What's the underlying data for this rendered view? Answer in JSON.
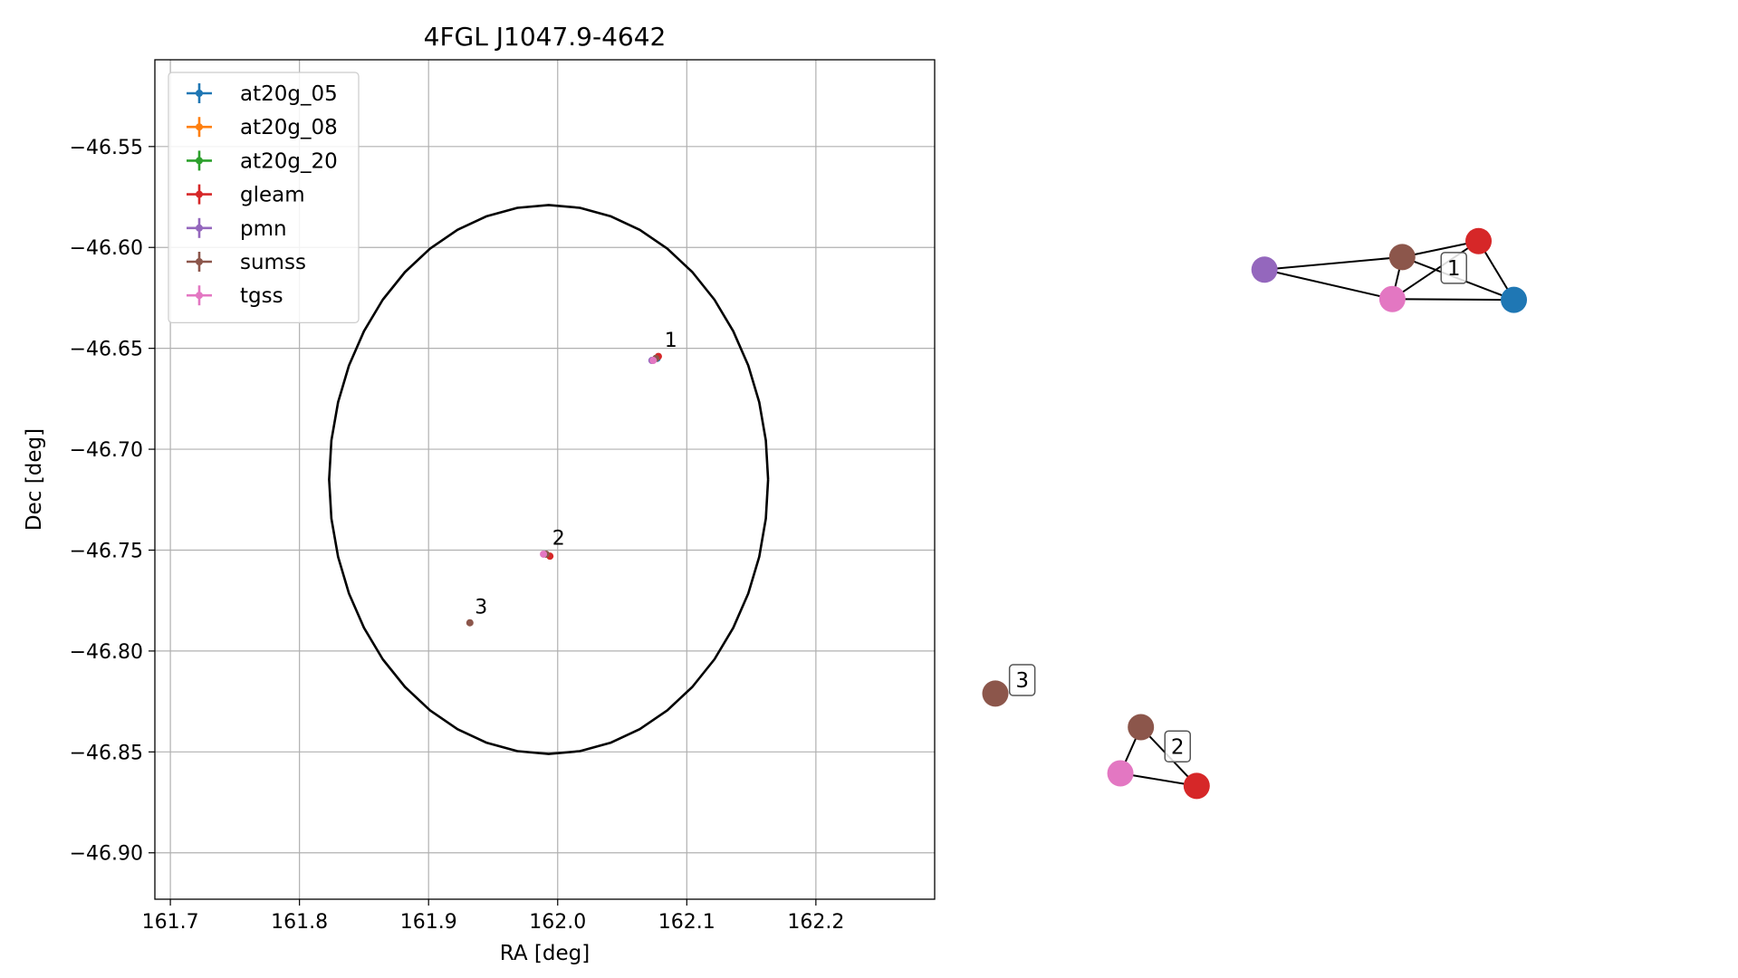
{
  "chart_data": [
    {
      "type": "scatter",
      "title": "4FGL J1047.9-4642",
      "xlabel": "RA [deg]",
      "ylabel": "Dec [deg]",
      "xlim": [
        161.688,
        162.292
      ],
      "ylim": [
        -46.923,
        -46.507
      ],
      "xticks": [
        161.7,
        161.8,
        161.9,
        162.0,
        162.1,
        162.2
      ],
      "xtick_labels": [
        "161.7",
        "161.8",
        "161.9",
        "162.0",
        "162.1",
        "162.2"
      ],
      "yticks": [
        -46.55,
        -46.6,
        -46.65,
        -46.7,
        -46.75,
        -46.8,
        -46.85,
        -46.9
      ],
      "ytick_labels": [
        "−46.55",
        "−46.60",
        "−46.65",
        "−46.70",
        "−46.75",
        "−46.80",
        "−46.85",
        "−46.90"
      ],
      "grid": true,
      "legend_position": "top-left",
      "series": [
        {
          "name": "at20g_05",
          "color": "#1f77b4",
          "points": [
            [
              162.077,
              -46.655
            ]
          ]
        },
        {
          "name": "at20g_08",
          "color": "#ff7f0e",
          "points": []
        },
        {
          "name": "at20g_20",
          "color": "#2ca02c",
          "points": []
        },
        {
          "name": "gleam",
          "color": "#d62728",
          "points": [
            [
              162.078,
              -46.654
            ],
            [
              161.994,
              -46.753
            ]
          ]
        },
        {
          "name": "pmn",
          "color": "#9467bd",
          "points": [
            [
              162.073,
              -46.656
            ]
          ]
        },
        {
          "name": "sumss",
          "color": "#8c564b",
          "points": [
            [
              162.076,
              -46.655
            ],
            [
              161.991,
              -46.752
            ],
            [
              161.932,
              -46.786
            ]
          ]
        },
        {
          "name": "tgss",
          "color": "#e377c2",
          "points": [
            [
              162.074,
              -46.656
            ],
            [
              161.989,
              -46.752
            ]
          ]
        }
      ],
      "ellipse": {
        "center": [
          161.993,
          -46.715
        ],
        "ra_semi_axis": 0.17,
        "dec_semi_axis": 0.136,
        "color": "#000000"
      },
      "annotations": [
        {
          "text": "1",
          "x": 162.08,
          "y": -46.652
        },
        {
          "text": "2",
          "x": 161.993,
          "y": -46.75
        },
        {
          "text": "3",
          "x": 161.933,
          "y": -46.784
        }
      ]
    },
    {
      "type": "network",
      "nodes": [
        {
          "id": "g1_at20g_05",
          "catalog": "at20g_05",
          "color": "#1f77b4",
          "x": 0.784,
          "y": 0.714
        },
        {
          "id": "g1_gleam",
          "catalog": "gleam",
          "color": "#d62728",
          "x": 0.734,
          "y": 0.784
        },
        {
          "id": "g1_sumss",
          "catalog": "sumss",
          "color": "#8c564b",
          "x": 0.626,
          "y": 0.765
        },
        {
          "id": "g1_pmn",
          "catalog": "pmn",
          "color": "#9467bd",
          "x": 0.431,
          "y": 0.75
        },
        {
          "id": "g1_tgss",
          "catalog": "tgss",
          "color": "#e377c2",
          "x": 0.612,
          "y": 0.715
        },
        {
          "id": "g2_sumss",
          "catalog": "sumss",
          "color": "#8c564b",
          "x": 0.256,
          "y": 0.205
        },
        {
          "id": "g2_tgss",
          "catalog": "tgss",
          "color": "#e377c2",
          "x": 0.227,
          "y": 0.15
        },
        {
          "id": "g2_gleam",
          "catalog": "gleam",
          "color": "#d62728",
          "x": 0.335,
          "y": 0.135
        },
        {
          "id": "g3_sumss",
          "catalog": "sumss",
          "color": "#8c564b",
          "x": 0.05,
          "y": 0.245
        }
      ],
      "edges": [
        [
          "g1_pmn",
          "g1_sumss"
        ],
        [
          "g1_pmn",
          "g1_tgss"
        ],
        [
          "g1_sumss",
          "g1_gleam"
        ],
        [
          "g1_sumss",
          "g1_tgss"
        ],
        [
          "g1_sumss",
          "g1_at20g_05"
        ],
        [
          "g1_tgss",
          "g1_gleam"
        ],
        [
          "g1_tgss",
          "g1_at20g_05"
        ],
        [
          "g1_gleam",
          "g1_at20g_05"
        ],
        [
          "g2_sumss",
          "g2_tgss"
        ],
        [
          "g2_sumss",
          "g2_gleam"
        ],
        [
          "g2_tgss",
          "g2_gleam"
        ]
      ],
      "group_labels": [
        {
          "text": "1",
          "x": 0.699,
          "y": 0.752
        },
        {
          "text": "2",
          "x": 0.308,
          "y": 0.182
        },
        {
          "text": "3",
          "x": 0.088,
          "y": 0.261
        }
      ]
    }
  ]
}
